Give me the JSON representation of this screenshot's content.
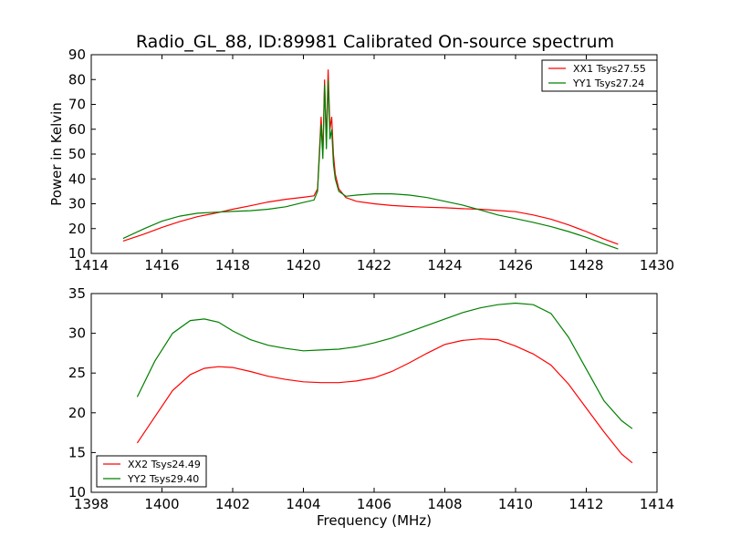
{
  "figure": {
    "title": "Radio_GL_88, ID:89981 Calibrated On-source spectrum"
  },
  "chart_data": [
    {
      "type": "line",
      "title": "Radio_GL_88, ID:89981 Calibrated On-source spectrum",
      "xlabel": "",
      "ylabel": "Power in Kelvin",
      "xlim": [
        1414,
        1430
      ],
      "ylim": [
        10,
        90
      ],
      "xticks": [
        1414,
        1416,
        1418,
        1420,
        1422,
        1424,
        1426,
        1428,
        1430
      ],
      "yticks": [
        10,
        20,
        30,
        40,
        50,
        60,
        70,
        80,
        90
      ],
      "grid": false,
      "legend_position": "upper right",
      "series": [
        {
          "name": "XX1 Tsys27.55",
          "color": "#ff0000",
          "x": [
            1414.9,
            1415.5,
            1416.0,
            1416.5,
            1417.0,
            1417.5,
            1418.0,
            1418.5,
            1419.0,
            1419.5,
            1420.0,
            1420.3,
            1420.4,
            1420.5,
            1420.55,
            1420.6,
            1420.65,
            1420.7,
            1420.75,
            1420.8,
            1420.85,
            1420.9,
            1421.0,
            1421.2,
            1421.5,
            1422.0,
            1422.5,
            1423.0,
            1423.5,
            1424.0,
            1424.5,
            1425.0,
            1425.5,
            1426.0,
            1426.5,
            1427.0,
            1427.5,
            1428.0,
            1428.5,
            1428.9
          ],
          "y": [
            15.0,
            17.8,
            20.5,
            22.8,
            24.8,
            26.2,
            27.8,
            29.2,
            30.7,
            31.8,
            32.6,
            33.2,
            36.0,
            65.0,
            50.0,
            80.0,
            55.0,
            84.0,
            60.0,
            65.0,
            50.0,
            42.0,
            36.0,
            32.5,
            31.0,
            30.0,
            29.3,
            28.9,
            28.6,
            28.4,
            28.0,
            27.8,
            27.3,
            26.8,
            25.5,
            23.8,
            21.5,
            18.8,
            15.8,
            13.7
          ]
        },
        {
          "name": "YY1 Tsys27.24",
          "color": "#008000",
          "x": [
            1414.9,
            1415.5,
            1416.0,
            1416.5,
            1417.0,
            1417.5,
            1418.0,
            1418.5,
            1419.0,
            1419.5,
            1420.0,
            1420.3,
            1420.4,
            1420.5,
            1420.55,
            1420.6,
            1420.65,
            1420.7,
            1420.75,
            1420.8,
            1420.85,
            1420.9,
            1421.0,
            1421.2,
            1421.5,
            1422.0,
            1422.5,
            1423.0,
            1423.5,
            1424.0,
            1424.5,
            1425.0,
            1425.5,
            1426.0,
            1426.5,
            1427.0,
            1427.5,
            1428.0,
            1428.5,
            1428.9
          ],
          "y": [
            16.0,
            20.0,
            23.0,
            25.0,
            26.2,
            26.6,
            26.9,
            27.2,
            27.8,
            28.8,
            30.5,
            31.5,
            35.0,
            62.0,
            48.0,
            78.0,
            52.0,
            80.0,
            56.0,
            60.0,
            46.0,
            40.0,
            35.0,
            33.0,
            33.5,
            34.0,
            34.0,
            33.5,
            32.5,
            31.0,
            29.5,
            27.5,
            25.5,
            24.0,
            22.5,
            20.8,
            18.8,
            16.5,
            13.8,
            11.8
          ]
        }
      ]
    },
    {
      "type": "line",
      "title": "",
      "xlabel": "Frequency (MHz)",
      "ylabel": "",
      "xlim": [
        1398,
        1414
      ],
      "ylim": [
        10,
        35
      ],
      "xticks": [
        1398,
        1400,
        1402,
        1404,
        1406,
        1408,
        1410,
        1412,
        1414
      ],
      "yticks": [
        10,
        15,
        20,
        25,
        30,
        35
      ],
      "grid": false,
      "legend_position": "lower left",
      "series": [
        {
          "name": "XX2 Tsys24.49",
          "color": "#ff0000",
          "x": [
            1399.3,
            1399.8,
            1400.3,
            1400.8,
            1401.2,
            1401.6,
            1402.0,
            1402.5,
            1403.0,
            1403.5,
            1404.0,
            1404.5,
            1405.0,
            1405.5,
            1406.0,
            1406.5,
            1407.0,
            1407.5,
            1408.0,
            1408.5,
            1409.0,
            1409.5,
            1410.0,
            1410.5,
            1411.0,
            1411.5,
            1412.0,
            1412.5,
            1413.0,
            1413.3
          ],
          "y": [
            16.2,
            19.5,
            22.8,
            24.8,
            25.6,
            25.8,
            25.7,
            25.2,
            24.6,
            24.2,
            23.9,
            23.8,
            23.8,
            24.0,
            24.4,
            25.2,
            26.3,
            27.5,
            28.6,
            29.1,
            29.3,
            29.2,
            28.4,
            27.4,
            26.0,
            23.6,
            20.6,
            17.6,
            14.8,
            13.7
          ]
        },
        {
          "name": "YY2 Tsys29.40",
          "color": "#008000",
          "x": [
            1399.3,
            1399.8,
            1400.3,
            1400.8,
            1401.2,
            1401.6,
            1402.0,
            1402.5,
            1403.0,
            1403.5,
            1404.0,
            1404.5,
            1405.0,
            1405.5,
            1406.0,
            1406.5,
            1407.0,
            1407.5,
            1408.0,
            1408.5,
            1409.0,
            1409.5,
            1410.0,
            1410.5,
            1411.0,
            1411.5,
            1412.0,
            1412.5,
            1413.0,
            1413.3
          ],
          "y": [
            22.0,
            26.5,
            30.0,
            31.6,
            31.8,
            31.4,
            30.3,
            29.2,
            28.5,
            28.1,
            27.8,
            27.9,
            28.0,
            28.3,
            28.8,
            29.4,
            30.2,
            31.0,
            31.8,
            32.6,
            33.2,
            33.6,
            33.8,
            33.6,
            32.5,
            29.5,
            25.5,
            21.5,
            19.0,
            18.0
          ]
        }
      ]
    }
  ]
}
